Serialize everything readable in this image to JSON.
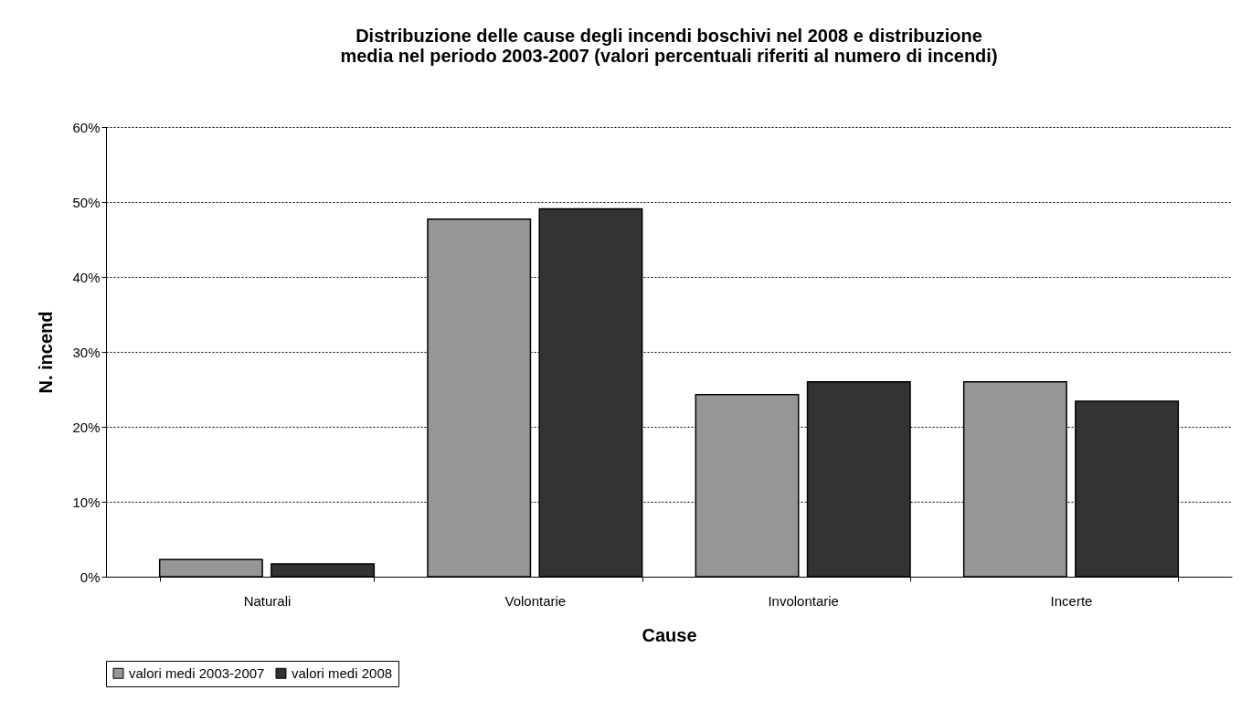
{
  "chart_data": {
    "type": "bar",
    "title": [
      "Distribuzione delle cause degli incendi boschivi nel 2008 e distribuzione",
      "media nel periodo 2003-2007 (valori percentuali riferiti al numero di incendi)"
    ],
    "xlabel": "Cause",
    "ylabel": "N. incend",
    "categories": [
      "Naturali",
      "Volontarie",
      "Involontarie",
      "Incerte"
    ],
    "series": [
      {
        "name": "valori medi 2003-2007",
        "color": "#969696",
        "values": [
          2.3,
          47.7,
          24.3,
          26.0
        ]
      },
      {
        "name": "valori medi 2008",
        "color": "#333333",
        "values": [
          1.7,
          49.1,
          26.0,
          23.4
        ]
      }
    ],
    "ylim": [
      0,
      60
    ],
    "yticks": [
      {
        "value": 0,
        "label": "0%"
      },
      {
        "value": 10,
        "label": "10%"
      },
      {
        "value": 20,
        "label": "20%"
      },
      {
        "value": 30,
        "label": "30%"
      },
      {
        "value": 40,
        "label": "40%"
      },
      {
        "value": 50,
        "label": "50%"
      },
      {
        "value": 60,
        "label": "60%"
      }
    ],
    "grid": "y",
    "legend": "bottom"
  }
}
